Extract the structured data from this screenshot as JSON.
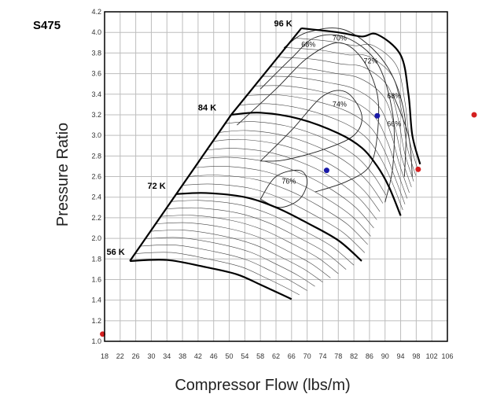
{
  "label": "S475",
  "chart_data": {
    "type": "line",
    "title": "S475",
    "xlabel": "Compressor Flow (lbs/m)",
    "ylabel": "Pressure Ratio",
    "xlim": [
      18,
      106
    ],
    "ylim": [
      1.0,
      4.2
    ],
    "grid": true,
    "x_ticks": [
      18,
      22,
      26,
      30,
      34,
      38,
      42,
      46,
      50,
      54,
      58,
      62,
      66,
      70,
      74,
      78,
      82,
      86,
      90,
      94,
      98,
      102,
      106
    ],
    "y_ticks": [
      1.0,
      1.2,
      1.4,
      1.6,
      1.8,
      2.0,
      2.2,
      2.4,
      2.6,
      2.8,
      3.0,
      3.2,
      3.4,
      3.6,
      3.8,
      4.0,
      4.2
    ],
    "surge_line": [
      [
        24.5,
        1.78
      ],
      [
        50.5,
        3.2
      ],
      [
        68.5,
        4.04
      ]
    ],
    "speed_lines": [
      {
        "label": "56 K",
        "points": [
          [
            24.5,
            1.78
          ],
          [
            34,
            1.79
          ],
          [
            44,
            1.72
          ],
          [
            52,
            1.65
          ],
          [
            58,
            1.55
          ],
          [
            62,
            1.48
          ],
          [
            66,
            1.41
          ]
        ]
      },
      {
        "label": "72 K",
        "points": [
          [
            36.5,
            2.43
          ],
          [
            44,
            2.44
          ],
          [
            54,
            2.4
          ],
          [
            62,
            2.3
          ],
          [
            70,
            2.15
          ],
          [
            78,
            1.98
          ],
          [
            84,
            1.78
          ]
        ]
      },
      {
        "label": "84 K",
        "points": [
          [
            50.5,
            3.2
          ],
          [
            58,
            3.22
          ],
          [
            68,
            3.16
          ],
          [
            78,
            3.02
          ],
          [
            84,
            2.88
          ],
          [
            88,
            2.7
          ],
          [
            91,
            2.5
          ],
          [
            94,
            2.22
          ]
        ]
      },
      {
        "label": "96 K",
        "points": [
          [
            68.5,
            4.04
          ],
          [
            78,
            4.0
          ],
          [
            84,
            3.96
          ],
          [
            88,
            3.98
          ],
          [
            94,
            3.78
          ],
          [
            96,
            3.4
          ],
          [
            97,
            3.0
          ],
          [
            99,
            2.72
          ]
        ]
      }
    ],
    "efficiency_islands": [
      {
        "label": "76%",
        "points": [
          [
            58,
            2.38
          ],
          [
            62,
            2.6
          ],
          [
            68,
            2.66
          ],
          [
            70,
            2.55
          ],
          [
            68,
            2.38
          ],
          [
            63,
            2.3
          ],
          [
            58,
            2.38
          ]
        ]
      },
      {
        "label": "74%",
        "points": [
          [
            58,
            2.75
          ],
          [
            66,
            3.05
          ],
          [
            74,
            3.38
          ],
          [
            80,
            3.42
          ],
          [
            84,
            3.2
          ],
          [
            82,
            3.0
          ],
          [
            74,
            2.86
          ],
          [
            64,
            2.76
          ],
          [
            58,
            2.75
          ]
        ]
      },
      {
        "label": "72%",
        "points": [
          [
            52,
            3.1
          ],
          [
            62,
            3.45
          ],
          [
            70,
            3.75
          ],
          [
            78,
            3.9
          ],
          [
            84,
            3.75
          ],
          [
            88,
            3.4
          ],
          [
            88,
            3.0
          ],
          [
            86,
            2.7
          ],
          [
            80,
            2.55
          ],
          [
            72,
            2.45
          ]
        ]
      },
      {
        "label": "70%",
        "points": [
          [
            58,
            3.45
          ],
          [
            66,
            3.75
          ],
          [
            72,
            3.95
          ],
          [
            80,
            3.95
          ],
          [
            88,
            3.7
          ],
          [
            92,
            3.2
          ],
          [
            92,
            2.7
          ],
          [
            90,
            2.35
          ]
        ]
      },
      {
        "label": "68%",
        "points": [
          [
            64,
            3.85
          ],
          [
            70,
            4.0
          ],
          [
            80,
            4.02
          ],
          [
            90,
            3.7
          ],
          [
            95,
            3.2
          ],
          [
            95,
            2.6
          ]
        ]
      },
      {
        "label": "66%",
        "points": [
          [
            92,
            3.4
          ],
          [
            96,
            3.0
          ],
          [
            97,
            2.6
          ]
        ]
      }
    ],
    "island_labels": [
      {
        "text": "68%",
        "x": 68.5,
        "y": 3.86
      },
      {
        "text": "70%",
        "x": 76.5,
        "y": 3.92
      },
      {
        "text": "72%",
        "x": 84.5,
        "y": 3.7
      },
      {
        "text": "74%",
        "x": 76.5,
        "y": 3.28
      },
      {
        "text": "76%",
        "x": 63.5,
        "y": 2.53
      },
      {
        "text": "68%",
        "x": 90.5,
        "y": 3.36
      },
      {
        "text": "66%",
        "x": 90.5,
        "y": 3.09
      }
    ],
    "speed_labels": [
      {
        "text": "96 K",
        "x": 61.5,
        "y": 4.06
      },
      {
        "text": "84 K",
        "x": 42,
        "y": 3.24
      },
      {
        "text": "72 K",
        "x": 29,
        "y": 2.48
      },
      {
        "text": "56 K",
        "x": 18.5,
        "y": 1.84
      }
    ],
    "points": [
      {
        "x": 75,
        "y": 2.66,
        "color": "#1a1aa8"
      },
      {
        "x": 88,
        "y": 3.19,
        "color": "#1a1aa8"
      },
      {
        "x": 98.5,
        "y": 2.67,
        "color": "#d42020"
      },
      {
        "x": 17.5,
        "y": 1.07,
        "color": "#d42020"
      }
    ],
    "offchart_point": {
      "color": "#d42020"
    },
    "colors": {
      "curve": "#000000",
      "grid": "#bdbdbd",
      "frame": "#000000"
    }
  }
}
